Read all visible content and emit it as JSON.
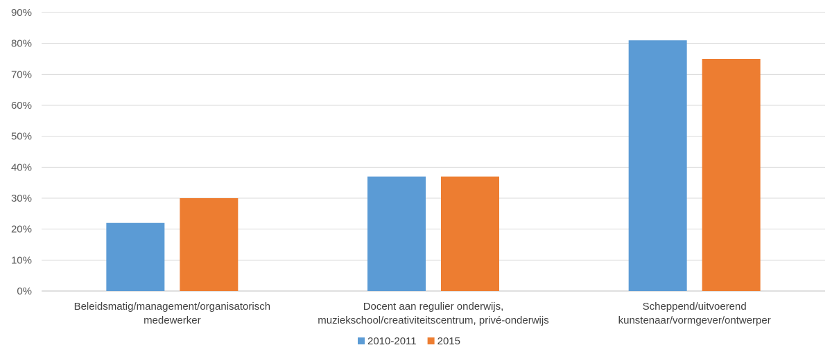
{
  "chart_data": {
    "type": "bar",
    "title": "",
    "xlabel": "",
    "ylabel": "",
    "ylim": [
      0,
      90
    ],
    "y_ticks": [
      "0%",
      "10%",
      "20%",
      "30%",
      "40%",
      "50%",
      "60%",
      "70%",
      "80%",
      "90%"
    ],
    "y_tick_values": [
      0,
      10,
      20,
      30,
      40,
      50,
      60,
      70,
      80,
      90
    ],
    "grid": true,
    "legend_position": "bottom",
    "categories": [
      [
        "Beleidsmatig/management/organisatorisch",
        "medewerker"
      ],
      [
        "Docent aan regulier onderwijs,",
        "muziekschool/creativiteitscentrum, privé-onderwijs"
      ],
      [
        "Scheppend/uitvoerend",
        "kunstenaar/vormgever/ontwerper"
      ]
    ],
    "series": [
      {
        "name": "2010-2011",
        "color": "#5b9bd5",
        "values": [
          22,
          37,
          81
        ]
      },
      {
        "name": "2015",
        "color": "#ed7d31",
        "values": [
          30,
          37,
          75
        ]
      }
    ]
  }
}
